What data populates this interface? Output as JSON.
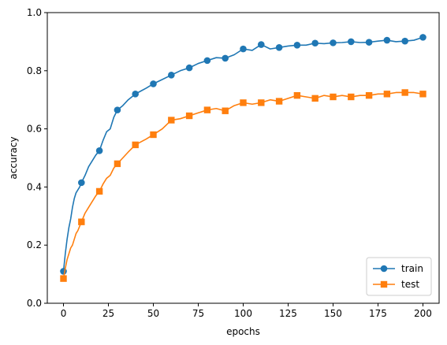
{
  "chart_data": {
    "type": "line",
    "title": "",
    "xlabel": "epochs",
    "ylabel": "accuracy",
    "xlim": [
      -9,
      209
    ],
    "ylim": [
      0,
      1.0
    ],
    "xticks": [
      0,
      25,
      50,
      75,
      100,
      125,
      150,
      175,
      200
    ],
    "yticks": [
      0.0,
      0.2,
      0.4,
      0.6,
      0.8,
      1.0
    ],
    "grid": false,
    "legend_position": "lower-right",
    "marker_every": 10,
    "series": [
      {
        "name": "train",
        "color": "#1f77b4",
        "marker": "circle",
        "x": [
          0,
          1,
          2,
          3,
          4,
          5,
          6,
          7,
          8,
          9,
          10,
          12,
          14,
          16,
          18,
          20,
          22,
          24,
          26,
          28,
          30,
          33,
          36,
          40,
          43,
          46,
          50,
          55,
          60,
          65,
          70,
          75,
          80,
          85,
          90,
          95,
          100,
          105,
          110,
          115,
          120,
          125,
          130,
          135,
          140,
          145,
          150,
          155,
          160,
          165,
          170,
          175,
          180,
          185,
          190,
          195,
          200
        ],
        "y": [
          0.11,
          0.17,
          0.22,
          0.26,
          0.29,
          0.33,
          0.36,
          0.38,
          0.39,
          0.4,
          0.415,
          0.44,
          0.47,
          0.49,
          0.51,
          0.525,
          0.56,
          0.59,
          0.6,
          0.64,
          0.665,
          0.68,
          0.7,
          0.72,
          0.73,
          0.74,
          0.755,
          0.77,
          0.785,
          0.8,
          0.81,
          0.825,
          0.835,
          0.845,
          0.843,
          0.855,
          0.875,
          0.87,
          0.89,
          0.875,
          0.88,
          0.885,
          0.888,
          0.888,
          0.895,
          0.893,
          0.896,
          0.897,
          0.9,
          0.897,
          0.898,
          0.902,
          0.905,
          0.9,
          0.902,
          0.905,
          0.915
        ]
      },
      {
        "name": "test",
        "color": "#ff7f0e",
        "marker": "square",
        "x": [
          0,
          1,
          2,
          3,
          4,
          5,
          6,
          7,
          8,
          9,
          10,
          12,
          14,
          16,
          18,
          20,
          22,
          24,
          26,
          28,
          30,
          33,
          36,
          40,
          43,
          46,
          50,
          55,
          60,
          65,
          70,
          75,
          80,
          85,
          90,
          95,
          100,
          105,
          110,
          115,
          120,
          125,
          130,
          135,
          140,
          145,
          150,
          155,
          160,
          165,
          170,
          175,
          180,
          185,
          190,
          195,
          200
        ],
        "y": [
          0.085,
          0.12,
          0.15,
          0.17,
          0.19,
          0.2,
          0.22,
          0.24,
          0.25,
          0.265,
          0.28,
          0.31,
          0.33,
          0.35,
          0.37,
          0.385,
          0.41,
          0.43,
          0.44,
          0.465,
          0.48,
          0.5,
          0.52,
          0.545,
          0.555,
          0.565,
          0.58,
          0.6,
          0.63,
          0.635,
          0.645,
          0.655,
          0.665,
          0.67,
          0.662,
          0.68,
          0.69,
          0.685,
          0.69,
          0.7,
          0.695,
          0.705,
          0.715,
          0.71,
          0.705,
          0.715,
          0.71,
          0.715,
          0.71,
          0.715,
          0.715,
          0.72,
          0.72,
          0.725,
          0.725,
          0.725,
          0.72
        ]
      }
    ]
  }
}
